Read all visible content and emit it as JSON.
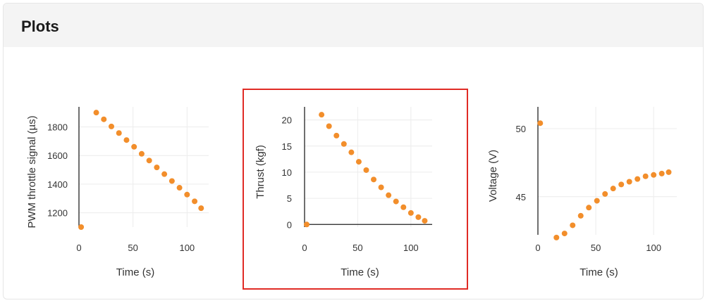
{
  "panel": {
    "title": "Plots"
  },
  "accent_color": "#f28e2b",
  "highlight_color": "#e02b25",
  "chart_data": [
    {
      "type": "scatter",
      "title": "",
      "xlabel": "Time (s)",
      "ylabel": "PWM throttle signal (µs)",
      "xlim": [
        0,
        120
      ],
      "ylim": [
        1100,
        1940
      ],
      "xticks": [
        0,
        50,
        100
      ],
      "yticks": [
        1200,
        1400,
        1600,
        1800
      ],
      "grid": true,
      "x": [
        2,
        16,
        23,
        30,
        37,
        44,
        51,
        58,
        65,
        72,
        79,
        86,
        93,
        100,
        107,
        113
      ],
      "y": [
        1100,
        1900,
        1853,
        1803,
        1757,
        1708,
        1661,
        1612,
        1565,
        1517,
        1470,
        1422,
        1375,
        1327,
        1280,
        1232
      ],
      "color": "#f28e2b"
    },
    {
      "type": "scatter",
      "title": "",
      "xlabel": "Time (s)",
      "ylabel": "Thrust (kgf)",
      "xlim": [
        0,
        120
      ],
      "ylim": [
        -0.5,
        22.5
      ],
      "xticks": [
        0,
        50,
        100
      ],
      "yticks": [
        0,
        5,
        10,
        15,
        20
      ],
      "grid": true,
      "x": [
        2,
        16,
        23,
        30,
        37,
        44,
        51,
        58,
        65,
        72,
        79,
        86,
        93,
        100,
        107,
        113
      ],
      "y": [
        0,
        21.0,
        18.8,
        17.0,
        15.4,
        13.8,
        12.0,
        10.4,
        8.6,
        7.1,
        5.6,
        4.4,
        3.3,
        2.2,
        1.4,
        0.7
      ],
      "color": "#f28e2b"
    },
    {
      "type": "scatter",
      "title": "",
      "xlabel": "Time (s)",
      "ylabel": "Voltage (V)",
      "xlim": [
        0,
        120
      ],
      "ylim": [
        42.2,
        51.6
      ],
      "xticks": [
        0,
        50,
        100
      ],
      "yticks": [
        45,
        50
      ],
      "grid": true,
      "x": [
        2,
        16,
        23,
        30,
        37,
        44,
        51,
        58,
        65,
        72,
        79,
        86,
        93,
        100,
        107,
        113
      ],
      "y": [
        50.4,
        42.0,
        42.3,
        42.9,
        43.6,
        44.2,
        44.7,
        45.2,
        45.6,
        45.9,
        46.1,
        46.3,
        46.5,
        46.6,
        46.7,
        46.8
      ],
      "color": "#f28e2b"
    }
  ]
}
